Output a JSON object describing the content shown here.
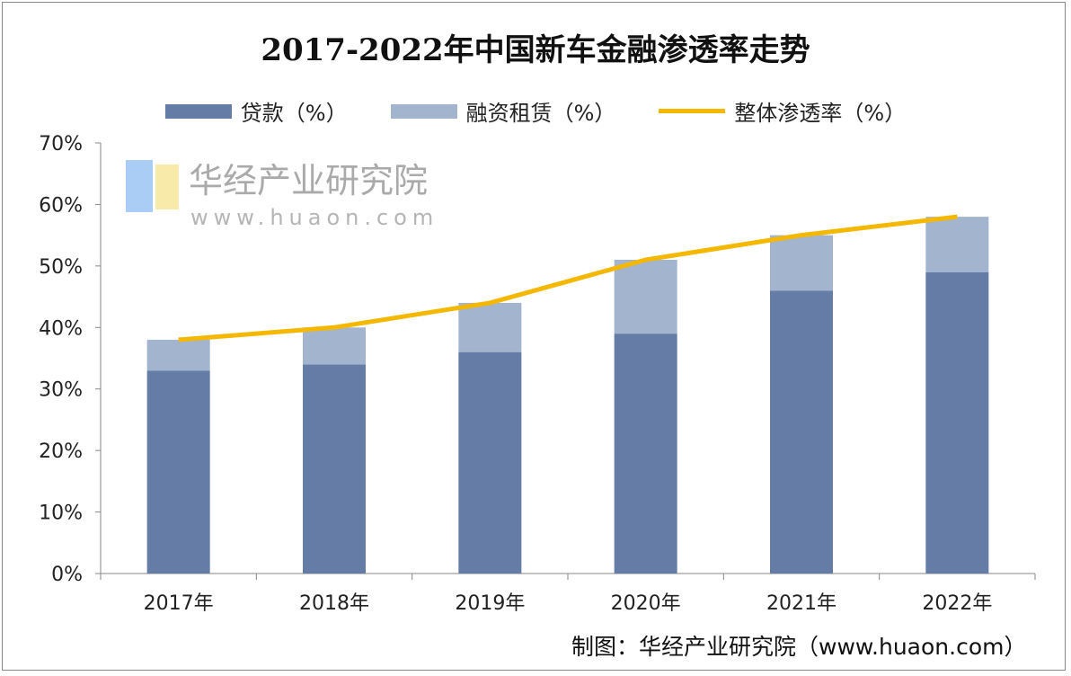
{
  "chart_data": {
    "type": "bar",
    "stacked": true,
    "title": "2017-2022年中国新车金融渗透率走势",
    "categories": [
      "2017年",
      "2018年",
      "2019年",
      "2020年",
      "2021年",
      "2022年"
    ],
    "series": [
      {
        "name": "贷款（%）",
        "type": "bar",
        "color": "#657ca6",
        "values": [
          33,
          34,
          36,
          39,
          46,
          49
        ]
      },
      {
        "name": "融资租赁（%）",
        "type": "bar",
        "color": "#a3b4cf",
        "values": [
          5,
          6,
          8,
          12,
          9,
          9
        ]
      },
      {
        "name": "整体渗透率（%）",
        "type": "line",
        "color": "#f5b800",
        "values": [
          38,
          40,
          44,
          51,
          55,
          58
        ]
      }
    ],
    "ylim": [
      0,
      70
    ],
    "yticks": [
      "0%",
      "10%",
      "20%",
      "30%",
      "40%",
      "50%",
      "60%",
      "70%"
    ],
    "grid": false,
    "legend": "top"
  },
  "source": "制图：华经产业研究院（www.huaon.com）",
  "watermark": {
    "text": "华经产业研究院",
    "url": "www.huaon.com"
  }
}
